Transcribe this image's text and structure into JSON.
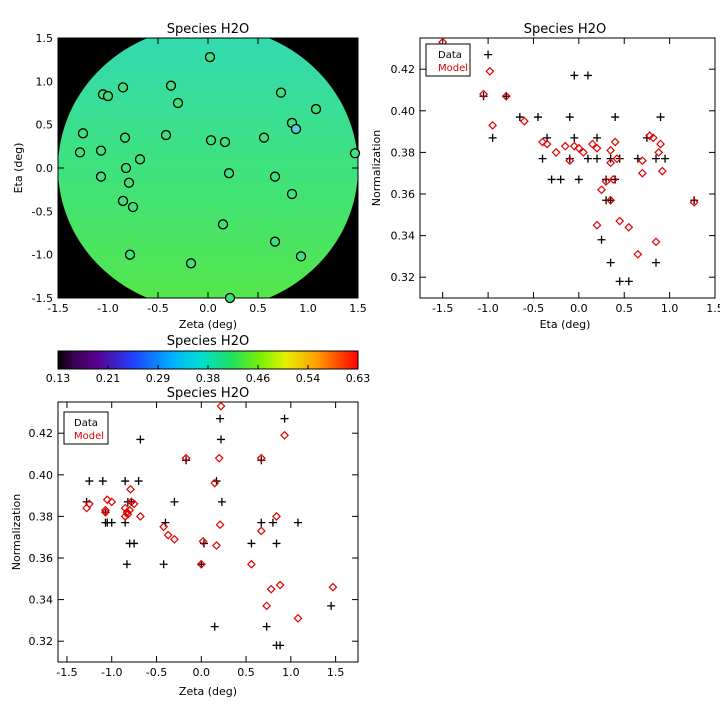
{
  "colors": {
    "data_marker": "#000000",
    "model_marker": "#e00000",
    "map_background": "#000000",
    "map_colormap_low": "#5a0078",
    "map_colormap_high": "#ff0000"
  },
  "chart_data": [
    {
      "id": "map",
      "type": "heatmap",
      "title": "Species H2O",
      "xlabel": "Zeta (deg)",
      "ylabel": "Eta (deg)",
      "xlim": [
        -1.5,
        1.5
      ],
      "ylim": [
        -1.5,
        1.5
      ],
      "xticks": [
        "-1.5",
        "-1.0",
        "-0.5",
        "0.0",
        "0.5",
        "1.0",
        "1.5"
      ],
      "yticks": [
        "-1.5",
        "-1.0",
        "-0.5",
        "0.0",
        "0.5",
        "1.0",
        "1.5"
      ],
      "field": {
        "center_value": 0.42,
        "top_value": 0.4,
        "bottom_value": 0.445,
        "left_value": 0.41,
        "right_value": 0.42
      },
      "points": [
        {
          "x": 0.02,
          "y": 1.28,
          "v": 0.41
        },
        {
          "x": -0.85,
          "y": 0.93,
          "v": 0.41
        },
        {
          "x": -0.37,
          "y": 0.95,
          "v": 0.41
        },
        {
          "x": -1.05,
          "y": 0.85,
          "v": 0.41
        },
        {
          "x": -1.0,
          "y": 0.83,
          "v": 0.41
        },
        {
          "x": -0.3,
          "y": 0.75,
          "v": 0.41
        },
        {
          "x": 0.73,
          "y": 0.87,
          "v": 0.41
        },
        {
          "x": 1.08,
          "y": 0.68,
          "v": 0.41
        },
        {
          "x": -1.25,
          "y": 0.4,
          "v": 0.41
        },
        {
          "x": -0.83,
          "y": 0.35,
          "v": 0.41
        },
        {
          "x": -0.42,
          "y": 0.38,
          "v": 0.41
        },
        {
          "x": 0.84,
          "y": 0.52,
          "v": 0.41
        },
        {
          "x": 0.88,
          "y": 0.45,
          "v": 0.37
        },
        {
          "x": 0.03,
          "y": 0.32,
          "v": 0.41
        },
        {
          "x": 0.17,
          "y": 0.3,
          "v": 0.39
        },
        {
          "x": 0.56,
          "y": 0.35,
          "v": 0.41
        },
        {
          "x": -1.28,
          "y": 0.18,
          "v": 0.41
        },
        {
          "x": -1.07,
          "y": 0.2,
          "v": 0.41
        },
        {
          "x": -0.68,
          "y": 0.1,
          "v": 0.41
        },
        {
          "x": -0.82,
          "y": 0.0,
          "v": 0.41
        },
        {
          "x": 1.47,
          "y": 0.17,
          "v": 0.41
        },
        {
          "x": -1.07,
          "y": -0.1,
          "v": 0.41
        },
        {
          "x": -0.79,
          "y": -0.17,
          "v": 0.41
        },
        {
          "x": 0.21,
          "y": -0.06,
          "v": 0.41
        },
        {
          "x": 0.67,
          "y": -0.1,
          "v": 0.41
        },
        {
          "x": -0.85,
          "y": -0.38,
          "v": 0.41
        },
        {
          "x": -0.75,
          "y": -0.45,
          "v": 0.41
        },
        {
          "x": 0.84,
          "y": -0.3,
          "v": 0.41
        },
        {
          "x": 0.15,
          "y": -0.65,
          "v": 0.41
        },
        {
          "x": -0.78,
          "y": -1.0,
          "v": 0.41
        },
        {
          "x": 0.67,
          "y": -0.85,
          "v": 0.41
        },
        {
          "x": 0.93,
          "y": -1.02,
          "v": 0.41
        },
        {
          "x": -0.17,
          "y": -1.1,
          "v": 0.41
        },
        {
          "x": 0.22,
          "y": -1.5,
          "v": 0.41
        }
      ]
    },
    {
      "id": "colorbar",
      "type": "heatmap",
      "title": "Species H2O",
      "range": [
        0.13,
        0.63
      ],
      "ticks": [
        "0.13",
        "0.21",
        "0.29",
        "0.38",
        "0.46",
        "0.54",
        "0.63"
      ]
    },
    {
      "id": "eta",
      "type": "scatter",
      "title": "Species H2O",
      "xlabel": "Eta (deg)",
      "ylabel": "Normalization",
      "xlim": [
        -1.75,
        1.5
      ],
      "ylim": [
        0.31,
        0.435
      ],
      "xticks": [
        "-1.5",
        "-1.0",
        "-0.5",
        "0.0",
        "0.5",
        "1.0",
        "1.5"
      ],
      "yticks": [
        "0.32",
        "0.34",
        "0.36",
        "0.38",
        "0.40",
        "0.42"
      ],
      "legend": {
        "position": "top-left",
        "items": [
          "Data",
          "Model"
        ]
      },
      "series": [
        {
          "name": "Data",
          "marker": "plus",
          "x": [
            -1.5,
            -1.05,
            -1.0,
            -0.8,
            -0.65,
            -0.45,
            -0.4,
            -0.3,
            -0.2,
            -0.1,
            -0.05,
            0.0,
            0.1,
            0.2,
            0.25,
            0.3,
            0.35,
            0.4,
            0.45,
            0.55,
            0.65,
            0.75,
            0.85,
            0.9,
            0.95,
            -0.1,
            0.1,
            -0.05,
            0.2,
            0.35,
            0.4,
            0.3,
            0.45,
            0.85,
            1.27,
            -0.95,
            -0.35,
            0.35
          ],
          "y": [
            0.422,
            0.407,
            0.427,
            0.407,
            0.397,
            0.397,
            0.377,
            0.367,
            0.367,
            0.377,
            0.417,
            0.367,
            0.417,
            0.387,
            0.338,
            0.367,
            0.357,
            0.397,
            0.318,
            0.318,
            0.377,
            0.387,
            0.377,
            0.397,
            0.377,
            0.397,
            0.377,
            0.387,
            0.377,
            0.327,
            0.367,
            0.357,
            0.377,
            0.327,
            0.357,
            0.387,
            0.387,
            0.377
          ]
        },
        {
          "name": "Model",
          "marker": "diamond",
          "x": [
            -1.5,
            -1.05,
            -0.98,
            -0.95,
            -0.8,
            -0.6,
            -0.4,
            -0.35,
            -0.25,
            -0.15,
            -0.05,
            0.0,
            0.05,
            0.15,
            0.2,
            0.25,
            0.3,
            0.35,
            0.4,
            0.45,
            0.55,
            0.65,
            0.7,
            0.78,
            0.82,
            0.85,
            0.88,
            0.9,
            0.92,
            1.27,
            0.35,
            0.35,
            0.42,
            0.38,
            0.2,
            -0.1,
            0.7
          ],
          "y": [
            0.433,
            0.408,
            0.419,
            0.393,
            0.407,
            0.395,
            0.385,
            0.384,
            0.38,
            0.383,
            0.383,
            0.382,
            0.38,
            0.384,
            0.345,
            0.362,
            0.366,
            0.357,
            0.385,
            0.347,
            0.344,
            0.331,
            0.37,
            0.388,
            0.387,
            0.337,
            0.38,
            0.384,
            0.371,
            0.356,
            0.381,
            0.375,
            0.377,
            0.367,
            0.382,
            0.376,
            0.376
          ]
        }
      ]
    },
    {
      "id": "zeta",
      "type": "scatter",
      "title": "Species H2O",
      "xlabel": "Zeta (deg)",
      "ylabel": "Normalization",
      "xlim": [
        -1.6,
        1.75
      ],
      "ylim": [
        0.31,
        0.435
      ],
      "xticks": [
        "-1.5",
        "-1.0",
        "-0.5",
        "0.0",
        "0.5",
        "1.0",
        "1.5"
      ],
      "yticks": [
        "0.32",
        "0.34",
        "0.36",
        "0.38",
        "0.40",
        "0.42"
      ],
      "legend": {
        "position": "top-left",
        "items": [
          "Data",
          "Model"
        ]
      },
      "series": [
        {
          "name": "Data",
          "marker": "plus",
          "x": [
            -1.28,
            -1.25,
            -1.1,
            -1.07,
            -1.05,
            -1.0,
            -0.85,
            -0.85,
            -0.83,
            -0.8,
            -0.78,
            -0.75,
            -0.7,
            -0.42,
            -0.4,
            -0.3,
            -0.17,
            0.0,
            0.03,
            0.15,
            0.17,
            0.21,
            0.22,
            0.23,
            0.56,
            0.67,
            0.73,
            0.8,
            0.84,
            0.88,
            0.93,
            1.08,
            1.45,
            -0.82,
            -0.68,
            0.67,
            0.84,
            -1.07
          ],
          "y": [
            0.387,
            0.397,
            0.397,
            0.382,
            0.377,
            0.377,
            0.397,
            0.377,
            0.357,
            0.367,
            0.387,
            0.367,
            0.397,
            0.357,
            0.377,
            0.387,
            0.407,
            0.357,
            0.367,
            0.327,
            0.397,
            0.427,
            0.417,
            0.387,
            0.367,
            0.407,
            0.327,
            0.377,
            0.318,
            0.318,
            0.427,
            0.377,
            0.337,
            0.387,
            0.417,
            0.377,
            0.367,
            0.377
          ]
        },
        {
          "name": "Model",
          "marker": "diamond",
          "x": [
            -1.28,
            -1.25,
            -1.07,
            -1.05,
            -1.0,
            -0.85,
            -0.83,
            -0.8,
            -0.79,
            -0.78,
            -0.75,
            -0.68,
            -0.42,
            -0.37,
            -0.3,
            -0.17,
            0.0,
            0.02,
            0.15,
            0.17,
            0.21,
            0.22,
            0.56,
            0.67,
            0.73,
            0.78,
            0.84,
            0.88,
            0.93,
            1.08,
            1.47,
            -0.82,
            -0.85,
            0.67,
            0.2,
            -1.07
          ],
          "y": [
            0.384,
            0.386,
            0.382,
            0.388,
            0.387,
            0.384,
            0.382,
            0.383,
            0.393,
            0.387,
            0.386,
            0.38,
            0.375,
            0.371,
            0.369,
            0.408,
            0.357,
            0.368,
            0.396,
            0.366,
            0.376,
            0.433,
            0.357,
            0.408,
            0.337,
            0.345,
            0.38,
            0.347,
            0.419,
            0.331,
            0.346,
            0.381,
            0.38,
            0.373,
            0.408,
            0.383
          ]
        }
      ]
    }
  ]
}
